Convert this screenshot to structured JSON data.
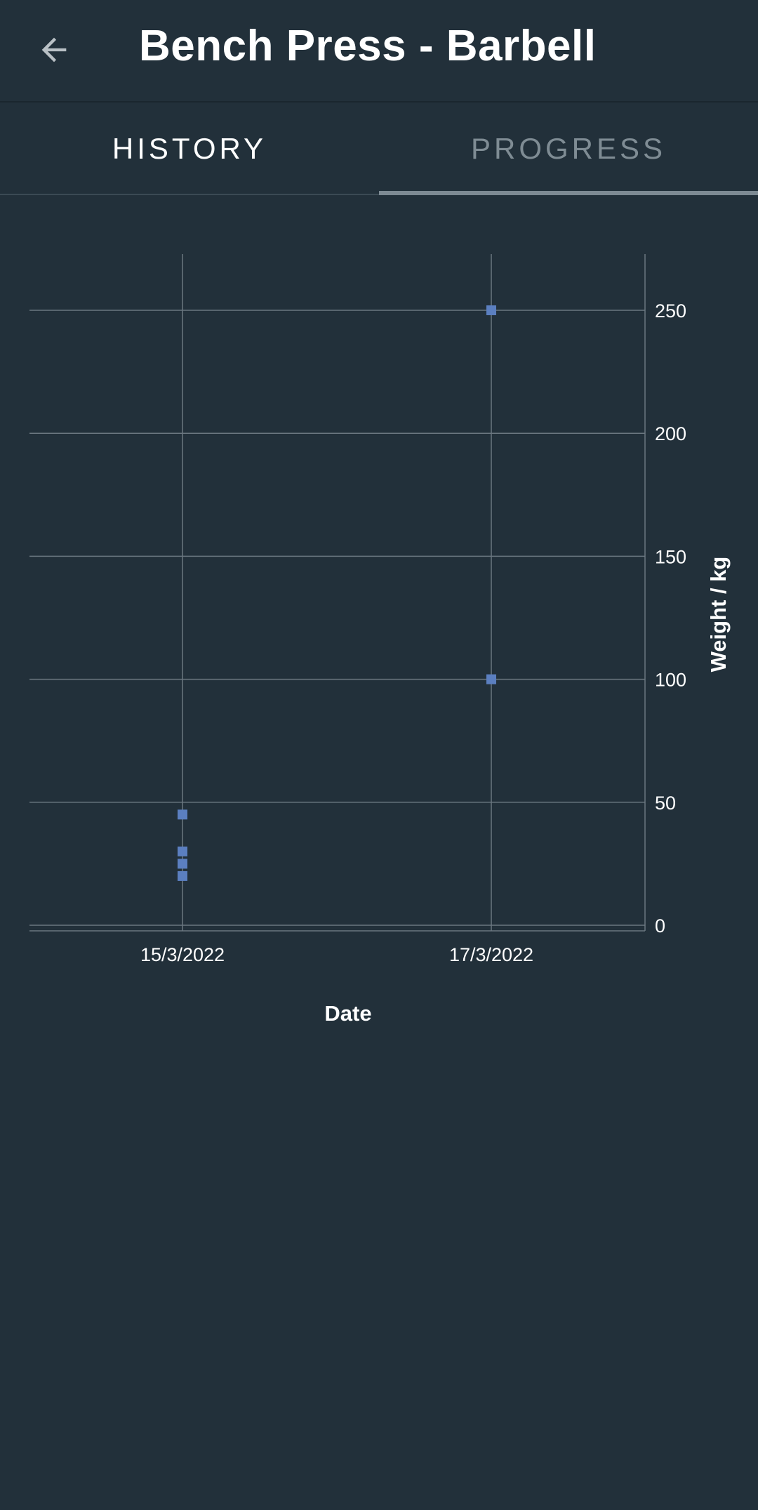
{
  "header": {
    "title": "Bench Press - Barbell",
    "back_icon": "arrow-left-icon"
  },
  "tabs": [
    {
      "label": "HISTORY",
      "active": false
    },
    {
      "label": "PROGRESS",
      "active": true
    }
  ],
  "colors": {
    "background": "#22303a",
    "point": "#5b7fc0",
    "grid": "#6b7780",
    "indicator": "#7d8a93"
  },
  "chart_data": {
    "type": "scatter",
    "title": "",
    "xlabel": "Date",
    "ylabel": "Weight / kg",
    "x_categories": [
      "15/3/2022",
      "17/3/2022"
    ],
    "y_ticks": [
      0,
      50,
      100,
      150,
      200,
      250
    ],
    "ylim": [
      0,
      250
    ],
    "grid": true,
    "y_axis_position": "right",
    "points": [
      {
        "x": "15/3/2022",
        "y": 45
      },
      {
        "x": "15/3/2022",
        "y": 30
      },
      {
        "x": "15/3/2022",
        "y": 25
      },
      {
        "x": "15/3/2022",
        "y": 20
      },
      {
        "x": "17/3/2022",
        "y": 250
      },
      {
        "x": "17/3/2022",
        "y": 100
      }
    ]
  }
}
